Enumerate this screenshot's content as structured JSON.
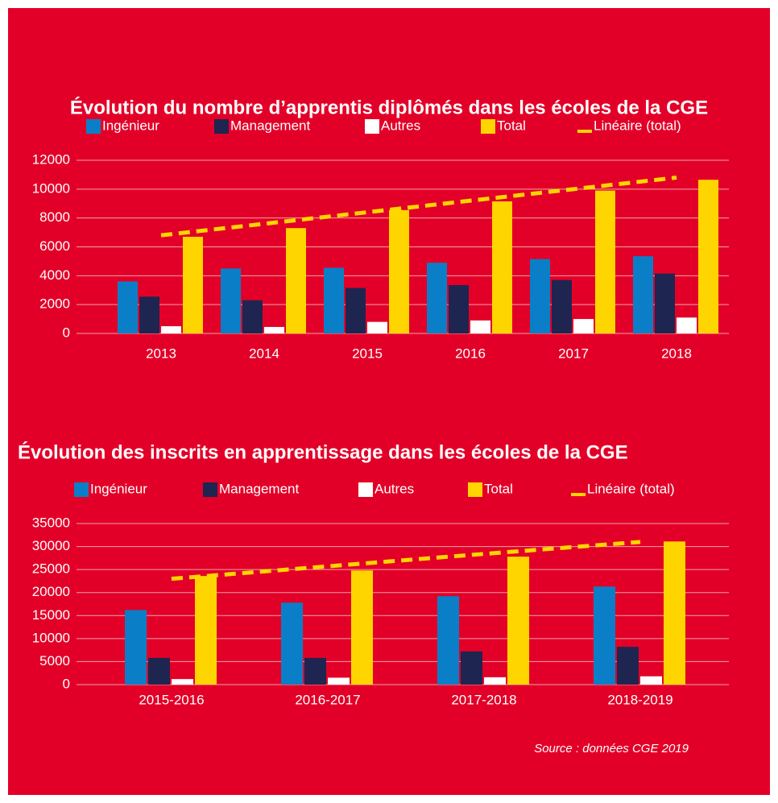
{
  "chart_data": [
    {
      "type": "bar",
      "title": "Évolution du nombre d’apprentis diplômés dans les écoles de la CGE",
      "categories": [
        "2013",
        "2014",
        "2015",
        "2016",
        "2017",
        "2018"
      ],
      "series": [
        {
          "name": "Ingénieur",
          "color": "#0a7fc8",
          "values": [
            3600,
            4500,
            4550,
            4900,
            5150,
            5350
          ]
        },
        {
          "name": "Management",
          "color": "#1e2550",
          "values": [
            2550,
            2300,
            3150,
            3350,
            3700,
            4150
          ]
        },
        {
          "name": "Autres",
          "color": "#ffffff",
          "values": [
            500,
            450,
            800,
            900,
            1000,
            1100
          ]
        },
        {
          "name": "Total",
          "color": "#ffd500",
          "values": [
            6700,
            7300,
            8550,
            9150,
            9900,
            10650
          ]
        },
        {
          "name": "Linéaire (total)",
          "color": "#ffd500",
          "dashed": true,
          "values": [
            6800,
            7600,
            8400,
            9200,
            10000,
            10800
          ]
        }
      ],
      "ylim": [
        0,
        12000
      ],
      "yticks": [
        0,
        2000,
        4000,
        6000,
        8000,
        10000,
        12000
      ],
      "grid": true
    },
    {
      "type": "bar",
      "title": "Évolution des inscrits en apprentissage dans les écoles de la CGE",
      "categories": [
        "2015-2016",
        "2016-2017",
        "2017-2018",
        "2018-2019"
      ],
      "series": [
        {
          "name": "Ingénieur",
          "color": "#0a7fc8",
          "values": [
            16200,
            17800,
            19200,
            21300
          ]
        },
        {
          "name": "Management",
          "color": "#1e2550",
          "values": [
            5800,
            5800,
            7200,
            8200
          ]
        },
        {
          "name": "Autres",
          "color": "#ffffff",
          "values": [
            1200,
            1500,
            1600,
            1800
          ]
        },
        {
          "name": "Total",
          "color": "#ffd500",
          "values": [
            23600,
            24800,
            27800,
            31100
          ]
        },
        {
          "name": "Linéaire (total)",
          "color": "#ffd500",
          "dashed": true,
          "values": [
            23000,
            25700,
            28400,
            31000
          ]
        }
      ],
      "ylim": [
        0,
        35000
      ],
      "yticks": [
        0,
        5000,
        10000,
        15000,
        20000,
        25000,
        30000,
        35000
      ],
      "grid": true
    }
  ],
  "source": "Source : données CGE 2019"
}
